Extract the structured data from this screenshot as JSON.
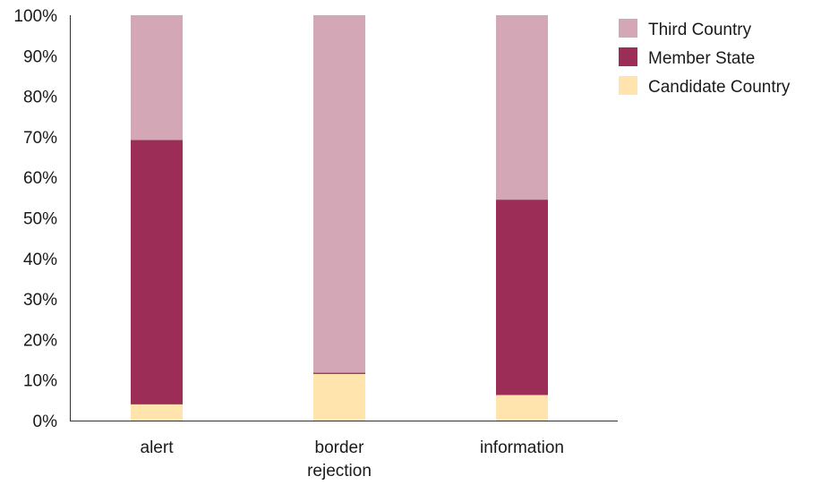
{
  "chart_data": {
    "type": "bar",
    "stacked": true,
    "percent": true,
    "categories": [
      [
        "alert"
      ],
      [
        "border",
        "rejection"
      ],
      [
        "information"
      ]
    ],
    "series": [
      {
        "name": "Candidate Country",
        "color": "#ffe4ad",
        "values": [
          4,
          11.5,
          6.3
        ]
      },
      {
        "name": "Member State",
        "color": "#9b2d56",
        "values": [
          65.2,
          0.3,
          48.2
        ]
      },
      {
        "name": "Third Country",
        "color": "#d4a7b6",
        "values": [
          30.8,
          88.2,
          45.5
        ]
      }
    ],
    "legend_order": [
      "Third Country",
      "Member State",
      "Candidate Country"
    ],
    "legend_position": "top-right",
    "yticks": [
      "0%",
      "10%",
      "20%",
      "30%",
      "40%",
      "50%",
      "60%",
      "70%",
      "80%",
      "90%",
      "100%"
    ],
    "ylim": [
      0,
      100
    ],
    "grid": false
  }
}
